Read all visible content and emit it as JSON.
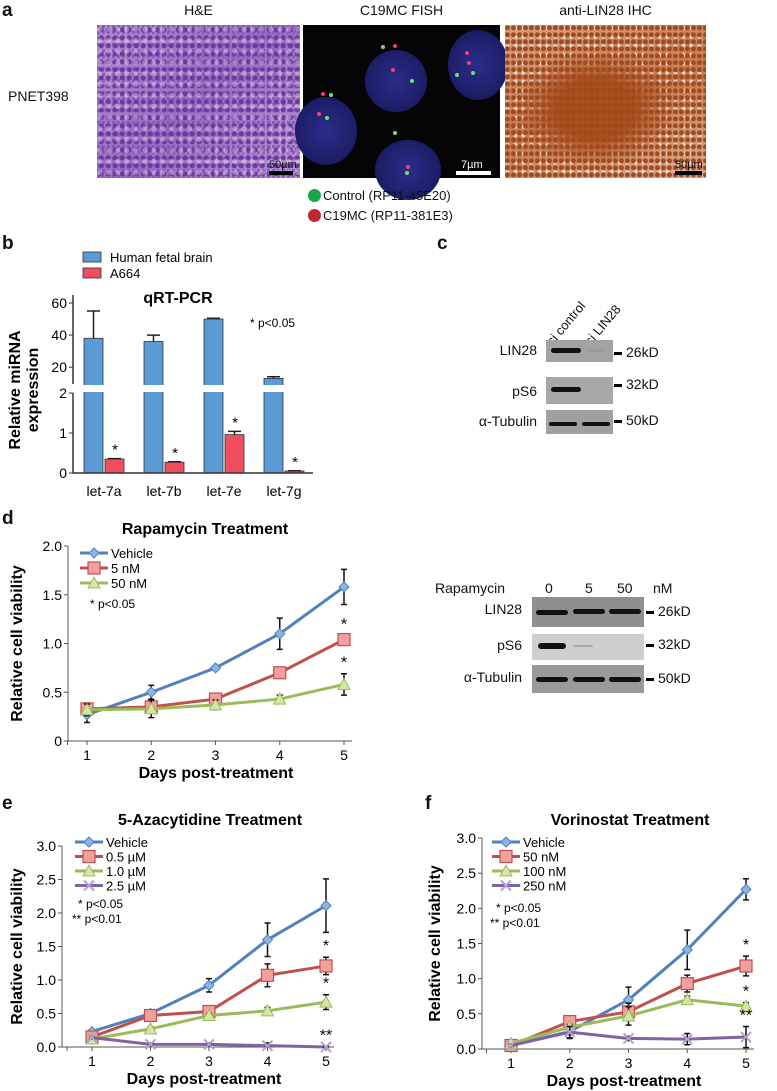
{
  "panel_a": {
    "label": "a",
    "row_label": "PNET398",
    "titles": [
      "H&E",
      "C19MC FISH",
      "anti-LIN28 IHC"
    ],
    "scale_bars": [
      "50µm",
      "7µm",
      "50µm"
    ],
    "legend": [
      {
        "label": "Control (RP11-45E20)",
        "color": "#1aa64a"
      },
      {
        "label": "C19MC (RP11-381E3)",
        "color": "#c0282d"
      }
    ]
  },
  "panel_b": {
    "label": "b"
  },
  "panel_c": {
    "label": "c",
    "lanes": [
      "si control",
      "si LIN28"
    ],
    "rows": [
      "LIN28",
      "pS6",
      "α-Tubulin"
    ],
    "markers": [
      "26kD",
      "32kD",
      "50kD"
    ]
  },
  "panel_d": {
    "label": "d"
  },
  "panel_d_blot": {
    "treatment": "Rapamycin",
    "lanes": [
      "0",
      "5",
      "50"
    ],
    "unit": "nM",
    "rows": [
      "LIN28",
      "pS6",
      "α-Tubulin"
    ],
    "markers": [
      "26kD",
      "32kD",
      "50kD"
    ]
  },
  "panel_e": {
    "label": "e"
  },
  "panel_f": {
    "label": "f"
  },
  "chart_data": [
    {
      "id": "b",
      "type": "bar",
      "title": "qRT-PCR",
      "ylabel": "Relative miRNA expression",
      "xlabel": "",
      "categories": [
        "let-7a",
        "let-7b",
        "let-7e",
        "let-7g"
      ],
      "axis_break": true,
      "ylim_lower": [
        0,
        2
      ],
      "ylim_upper": [
        9.5,
        65
      ],
      "yticks_lower": [
        0,
        1,
        2
      ],
      "yticks_upper": [
        20,
        40,
        60
      ],
      "annotation": "* p<0.05",
      "legend_position": "top-left",
      "series": [
        {
          "name": "Human fetal brain",
          "color": "#5b9bd5",
          "values": [
            38,
            36,
            50,
            13
          ],
          "errors": [
            17,
            4,
            0.5,
            1
          ],
          "marks": [
            "",
            "",
            "",
            ""
          ]
        },
        {
          "name": "A664",
          "color": "#f04e5e",
          "values": [
            0.35,
            0.27,
            0.96,
            0.05
          ],
          "errors": [
            0.01,
            0.01,
            0.08,
            0.005
          ],
          "marks": [
            "*",
            "*",
            "*",
            "*"
          ]
        }
      ]
    },
    {
      "id": "d",
      "type": "line",
      "title": "Rapamycin Treatment",
      "xlabel": "Days post-treatment",
      "ylabel": "Relative cell viability",
      "x": [
        1,
        2,
        3,
        4,
        5
      ],
      "ylim": [
        0,
        2.0
      ],
      "yticks": [
        "0",
        "0.5",
        "1.0",
        "1.5",
        "2.0"
      ],
      "annotations": [
        "* p<0.05"
      ],
      "legend_position": "top-left",
      "series": [
        {
          "name": "Vehicle",
          "color": "#4f81bd",
          "marker": "diamond",
          "values": [
            0.27,
            0.5,
            0.75,
            1.1,
            1.58
          ],
          "errors": [
            0.08,
            0.07,
            0.02,
            0.16,
            0.18
          ],
          "marks": [
            "",
            "",
            "",
            "",
            ""
          ]
        },
        {
          "name": "5 nM",
          "color": "#c0504d",
          "marker": "square",
          "values": [
            0.33,
            0.35,
            0.43,
            0.7,
            1.04
          ],
          "errors": [
            0.05,
            0.05,
            0.05,
            0.02,
            0.04
          ],
          "marks": [
            "",
            "",
            "",
            "",
            "*"
          ]
        },
        {
          "name": "50 nM",
          "color": "#9bbb59",
          "marker": "triangle",
          "values": [
            0.32,
            0.33,
            0.37,
            0.43,
            0.58
          ],
          "errors": [
            0.06,
            0.09,
            0.05,
            0.04,
            0.11
          ],
          "marks": [
            "",
            "",
            "",
            "",
            "*"
          ]
        }
      ]
    },
    {
      "id": "e",
      "type": "line",
      "title": "5-Azacytidine Treatment",
      "xlabel": "Days post-treatment",
      "ylabel": "Relative cell viability",
      "x": [
        1,
        2,
        3,
        4,
        5
      ],
      "ylim": [
        0,
        3.0
      ],
      "yticks": [
        "0.0",
        "0.5",
        "1.0",
        "1.5",
        "2.0",
        "2.5",
        "3.0"
      ],
      "annotations": [
        "* p<0.05",
        "** p<0.01"
      ],
      "legend_position": "top-left",
      "series": [
        {
          "name": "Vehicle",
          "color": "#4f81bd",
          "marker": "diamond",
          "values": [
            0.23,
            0.5,
            0.92,
            1.6,
            2.11
          ],
          "errors": [
            0.03,
            0.04,
            0.1,
            0.25,
            0.4
          ],
          "marks": [
            "",
            "",
            "",
            "",
            ""
          ]
        },
        {
          "name": "0.5 µM",
          "color": "#c0504d",
          "marker": "square",
          "values": [
            0.15,
            0.47,
            0.53,
            1.07,
            1.21
          ],
          "errors": [
            0.03,
            0.08,
            0.05,
            0.17,
            0.13
          ],
          "marks": [
            "",
            "",
            "",
            "",
            "*"
          ]
        },
        {
          "name": "1.0 µM",
          "color": "#9bbb59",
          "marker": "triangle",
          "values": [
            0.12,
            0.27,
            0.47,
            0.54,
            0.67
          ],
          "errors": [
            0.03,
            0.03,
            0.03,
            0.05,
            0.11
          ],
          "marks": [
            "",
            "",
            "",
            "",
            "*"
          ]
        },
        {
          "name": "2.5 µM",
          "color": "#8064a2",
          "marker": "x",
          "values": [
            0.14,
            0.04,
            0.04,
            0.02,
            0.0
          ],
          "errors": [
            0.02,
            0.02,
            0.02,
            0.04,
            0.01
          ],
          "marks": [
            "",
            "",
            "",
            "",
            "**"
          ]
        }
      ]
    },
    {
      "id": "f",
      "type": "line",
      "title": "Vorinostat Treatment",
      "xlabel": "Days post-treatment",
      "ylabel": "Relative cell viability",
      "x": [
        1,
        2,
        3,
        4,
        5
      ],
      "ylim": [
        0,
        3.0
      ],
      "yticks": [
        "0.0",
        "0.5",
        "1.0",
        "1.5",
        "2.0",
        "2.5",
        "3.0"
      ],
      "annotations": [
        "* p<0.05",
        "** p<0.01"
      ],
      "legend_position": "top-left",
      "series": [
        {
          "name": "Vehicle",
          "color": "#4f81bd",
          "marker": "diamond",
          "values": [
            0.05,
            0.25,
            0.7,
            1.41,
            2.27
          ],
          "errors": [
            0.02,
            0.1,
            0.18,
            0.28,
            0.15
          ],
          "marks": [
            "",
            "",
            "",
            "",
            ""
          ]
        },
        {
          "name": "50 nM",
          "color": "#c0504d",
          "marker": "square",
          "values": [
            0.05,
            0.39,
            0.53,
            0.93,
            1.18
          ],
          "errors": [
            0.02,
            0.04,
            0.12,
            0.12,
            0.14
          ],
          "marks": [
            "",
            "",
            "",
            "",
            "*"
          ]
        },
        {
          "name": "100 nM",
          "color": "#9bbb59",
          "marker": "triangle",
          "values": [
            0.08,
            0.31,
            0.47,
            0.7,
            0.61
          ],
          "errors": [
            0.02,
            0.04,
            0.13,
            0.05,
            0.05
          ],
          "marks": [
            "",
            "",
            "",
            "",
            "*"
          ]
        },
        {
          "name": "250 nM",
          "color": "#8064a2",
          "marker": "x",
          "values": [
            0.05,
            0.24,
            0.15,
            0.14,
            0.17
          ],
          "errors": [
            0.02,
            0.08,
            0.03,
            0.08,
            0.15
          ],
          "marks": [
            "",
            "",
            "",
            "",
            "**"
          ]
        }
      ]
    }
  ]
}
